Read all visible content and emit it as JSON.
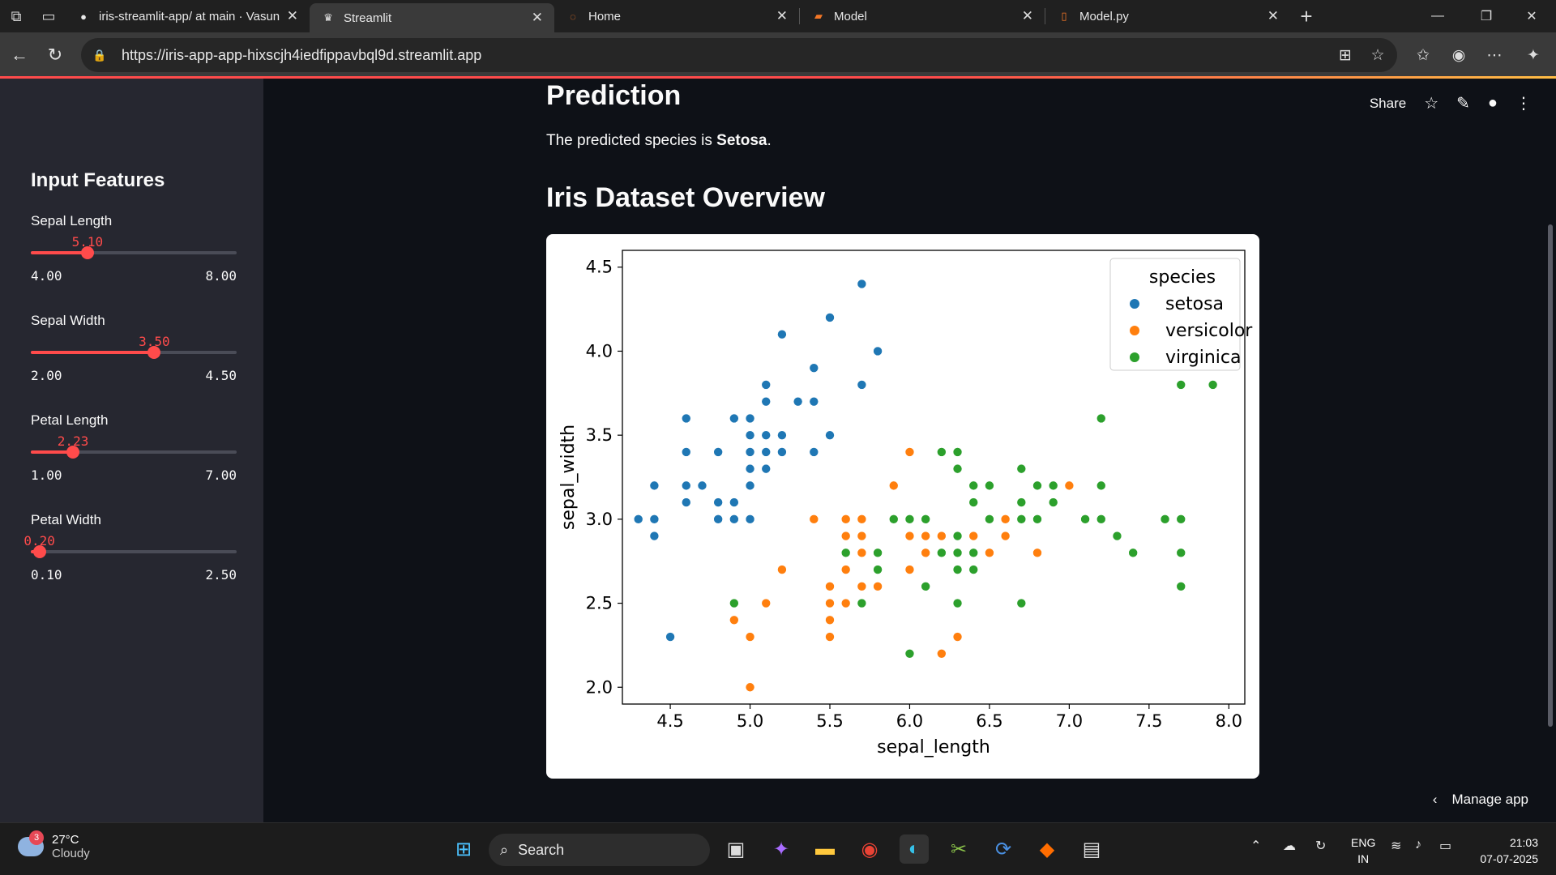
{
  "browser": {
    "tabs": [
      {
        "title": "iris-streamlit-app/ at main · Vasun",
        "icon": "github-icon"
      },
      {
        "title": "Streamlit",
        "icon": "streamlit-icon",
        "active": true
      },
      {
        "title": "Home",
        "icon": "jupyter-icon"
      },
      {
        "title": "Model",
        "icon": "notebook-icon"
      },
      {
        "title": "Model.py",
        "icon": "file-icon"
      }
    ],
    "url": "https://iris-app-app-hixscjh4iedfippavbql9d.streamlit.app"
  },
  "sidebar": {
    "title": "Input Features",
    "sliders": [
      {
        "label": "Sepal Length",
        "value": "5.10",
        "min": "4.00",
        "max": "8.00",
        "fraction": 0.275
      },
      {
        "label": "Sepal Width",
        "value": "3.50",
        "min": "2.00",
        "max": "4.50",
        "fraction": 0.6
      },
      {
        "label": "Petal Length",
        "value": "2.23",
        "min": "1.00",
        "max": "7.00",
        "fraction": 0.205
      },
      {
        "label": "Petal Width",
        "value": "0.20",
        "min": "0.10",
        "max": "2.50",
        "fraction": 0.042
      }
    ]
  },
  "main": {
    "prediction_heading": "Prediction",
    "prediction_prefix": "The predicted species is ",
    "prediction_value": "Setosa",
    "prediction_suffix": ".",
    "overview_heading": "Iris Dataset Overview",
    "toolbar": {
      "share": "Share"
    },
    "manage_app": "Manage app"
  },
  "chart_data": {
    "type": "scatter",
    "title": "",
    "xlabel": "sepal_length",
    "ylabel": "sepal_width",
    "xlim": [
      4.2,
      8.1
    ],
    "ylim": [
      1.9,
      4.6
    ],
    "xticks": [
      "4.5",
      "5.0",
      "5.5",
      "6.0",
      "6.5",
      "7.0",
      "7.5",
      "8.0"
    ],
    "yticks": [
      "2.0",
      "2.5",
      "3.0",
      "3.5",
      "4.0",
      "4.5"
    ],
    "legend": {
      "title": "species",
      "position": "top-right"
    },
    "series": [
      {
        "name": "setosa",
        "color": "#1f77b4",
        "points": [
          [
            5.1,
            3.5
          ],
          [
            4.9,
            3.0
          ],
          [
            4.7,
            3.2
          ],
          [
            4.6,
            3.1
          ],
          [
            5.0,
            3.6
          ],
          [
            5.4,
            3.9
          ],
          [
            4.6,
            3.4
          ],
          [
            5.0,
            3.4
          ],
          [
            4.4,
            2.9
          ],
          [
            4.9,
            3.1
          ],
          [
            5.4,
            3.7
          ],
          [
            4.8,
            3.4
          ],
          [
            4.8,
            3.0
          ],
          [
            4.3,
            3.0
          ],
          [
            5.8,
            4.0
          ],
          [
            5.7,
            4.4
          ],
          [
            5.4,
            3.9
          ],
          [
            5.1,
            3.5
          ],
          [
            5.7,
            3.8
          ],
          [
            5.1,
            3.8
          ],
          [
            5.4,
            3.4
          ],
          [
            5.1,
            3.7
          ],
          [
            4.6,
            3.6
          ],
          [
            5.1,
            3.3
          ],
          [
            4.8,
            3.4
          ],
          [
            5.0,
            3.0
          ],
          [
            5.0,
            3.4
          ],
          [
            5.2,
            3.5
          ],
          [
            5.2,
            3.4
          ],
          [
            4.7,
            3.2
          ],
          [
            4.8,
            3.1
          ],
          [
            5.4,
            3.4
          ],
          [
            5.2,
            4.1
          ],
          [
            5.5,
            4.2
          ],
          [
            4.9,
            3.1
          ],
          [
            5.0,
            3.2
          ],
          [
            5.5,
            3.5
          ],
          [
            4.9,
            3.6
          ],
          [
            4.4,
            3.0
          ],
          [
            5.1,
            3.4
          ],
          [
            5.0,
            3.5
          ],
          [
            4.5,
            2.3
          ],
          [
            4.4,
            3.2
          ],
          [
            5.0,
            3.5
          ],
          [
            5.1,
            3.8
          ],
          [
            4.8,
            3.0
          ],
          [
            5.1,
            3.8
          ],
          [
            4.6,
            3.2
          ],
          [
            5.3,
            3.7
          ],
          [
            5.0,
            3.3
          ]
        ]
      },
      {
        "name": "versicolor",
        "color": "#ff7f0e",
        "points": [
          [
            7.0,
            3.2
          ],
          [
            6.4,
            3.2
          ],
          [
            6.9,
            3.1
          ],
          [
            5.5,
            2.3
          ],
          [
            6.5,
            2.8
          ],
          [
            5.7,
            2.8
          ],
          [
            6.3,
            3.3
          ],
          [
            4.9,
            2.4
          ],
          [
            6.6,
            2.9
          ],
          [
            5.2,
            2.7
          ],
          [
            5.0,
            2.0
          ],
          [
            5.9,
            3.0
          ],
          [
            6.0,
            2.2
          ],
          [
            6.1,
            2.9
          ],
          [
            5.6,
            2.9
          ],
          [
            6.7,
            3.1
          ],
          [
            5.6,
            3.0
          ],
          [
            5.8,
            2.7
          ],
          [
            6.2,
            2.2
          ],
          [
            5.6,
            2.5
          ],
          [
            5.9,
            3.2
          ],
          [
            6.1,
            2.8
          ],
          [
            6.3,
            2.5
          ],
          [
            6.1,
            2.8
          ],
          [
            6.4,
            2.9
          ],
          [
            6.6,
            3.0
          ],
          [
            6.8,
            2.8
          ],
          [
            6.7,
            3.0
          ],
          [
            6.0,
            2.9
          ],
          [
            5.7,
            2.6
          ],
          [
            5.5,
            2.4
          ],
          [
            5.5,
            2.4
          ],
          [
            5.8,
            2.7
          ],
          [
            6.0,
            2.7
          ],
          [
            5.4,
            3.0
          ],
          [
            6.0,
            3.4
          ],
          [
            6.7,
            3.1
          ],
          [
            6.3,
            2.3
          ],
          [
            5.6,
            3.0
          ],
          [
            5.5,
            2.5
          ],
          [
            5.5,
            2.6
          ],
          [
            6.1,
            3.0
          ],
          [
            5.8,
            2.6
          ],
          [
            5.0,
            2.3
          ],
          [
            5.6,
            2.7
          ],
          [
            5.7,
            3.0
          ],
          [
            5.7,
            2.9
          ],
          [
            6.2,
            2.9
          ],
          [
            5.1,
            2.5
          ],
          [
            5.7,
            2.8
          ]
        ]
      },
      {
        "name": "virginica",
        "color": "#2ca02c",
        "points": [
          [
            6.3,
            3.3
          ],
          [
            5.8,
            2.7
          ],
          [
            7.1,
            3.0
          ],
          [
            6.3,
            2.9
          ],
          [
            6.5,
            3.0
          ],
          [
            7.6,
            3.0
          ],
          [
            4.9,
            2.5
          ],
          [
            7.3,
            2.9
          ],
          [
            6.7,
            2.5
          ],
          [
            7.2,
            3.6
          ],
          [
            6.5,
            3.2
          ],
          [
            6.4,
            2.7
          ],
          [
            6.8,
            3.0
          ],
          [
            5.7,
            2.5
          ],
          [
            5.8,
            2.8
          ],
          [
            6.4,
            3.2
          ],
          [
            6.5,
            3.0
          ],
          [
            7.7,
            3.8
          ],
          [
            7.7,
            2.6
          ],
          [
            6.0,
            2.2
          ],
          [
            6.9,
            3.2
          ],
          [
            5.6,
            2.8
          ],
          [
            7.7,
            2.8
          ],
          [
            6.3,
            2.7
          ],
          [
            6.7,
            3.3
          ],
          [
            7.2,
            3.2
          ],
          [
            6.2,
            2.8
          ],
          [
            6.1,
            3.0
          ],
          [
            6.4,
            2.8
          ],
          [
            7.2,
            3.0
          ],
          [
            7.4,
            2.8
          ],
          [
            7.9,
            3.8
          ],
          [
            6.4,
            2.8
          ],
          [
            6.3,
            2.8
          ],
          [
            6.1,
            2.6
          ],
          [
            7.7,
            3.0
          ],
          [
            6.3,
            3.4
          ],
          [
            6.4,
            3.1
          ],
          [
            6.0,
            3.0
          ],
          [
            6.9,
            3.1
          ],
          [
            6.7,
            3.1
          ],
          [
            6.9,
            3.1
          ],
          [
            5.8,
            2.7
          ],
          [
            6.8,
            3.2
          ],
          [
            6.7,
            3.3
          ],
          [
            6.7,
            3.0
          ],
          [
            6.3,
            2.5
          ],
          [
            6.5,
            3.0
          ],
          [
            6.2,
            3.4
          ],
          [
            5.9,
            3.0
          ]
        ]
      }
    ]
  },
  "taskbar": {
    "weather_temp": "27°C",
    "weather_desc": "Cloudy",
    "weather_badge": "3",
    "search_label": "Search",
    "lang_top": "ENG",
    "lang_bottom": "IN",
    "time": "21:03",
    "date": "07-07-2025"
  }
}
